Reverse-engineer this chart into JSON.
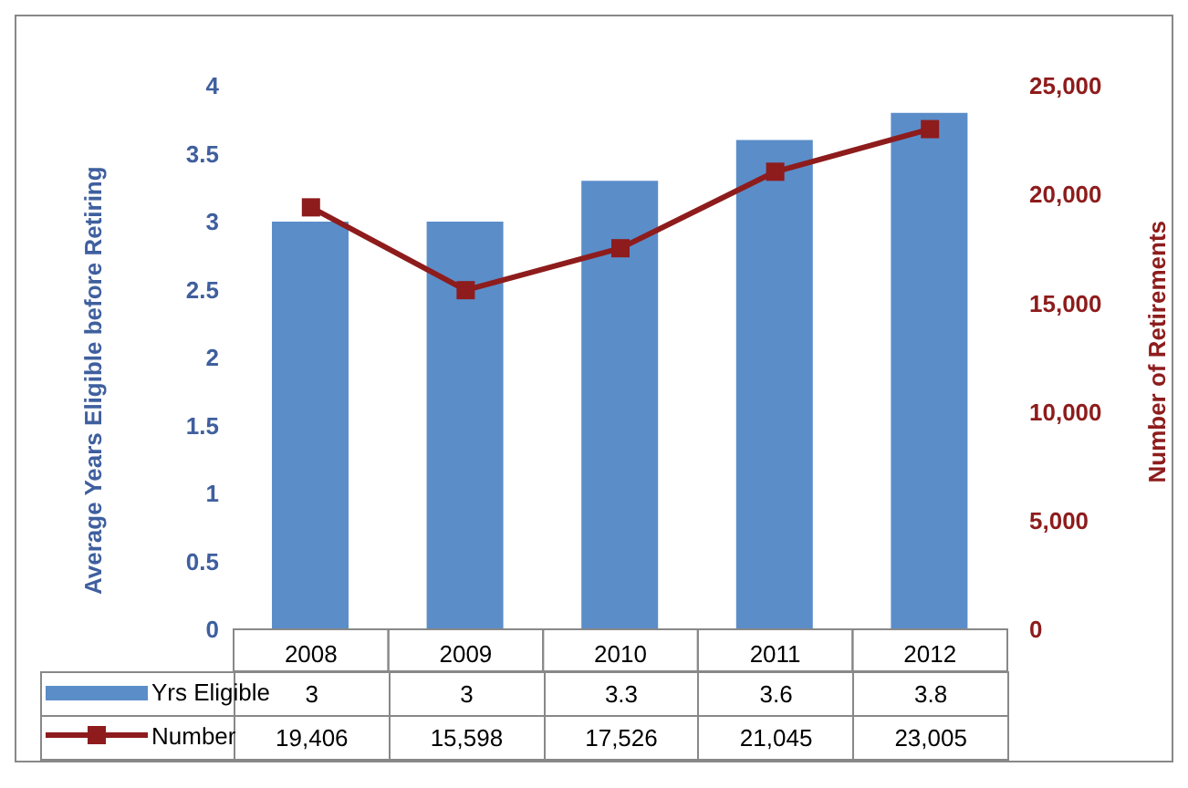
{
  "chart_data": {
    "type": "bar",
    "categories": [
      "2008",
      "2009",
      "2010",
      "2011",
      "2012"
    ],
    "series": [
      {
        "name": "Yrs Eligible",
        "color": "#5b8dc9",
        "values": [
          3,
          3,
          3.3,
          3.6,
          3.8
        ],
        "value_labels": [
          "3",
          "3",
          "3.3",
          "3.6",
          "3.8"
        ]
      },
      {
        "name": "Number",
        "type": "line",
        "axis": "y2",
        "color": "#8e1c1c",
        "values": [
          19406,
          15598,
          17526,
          21045,
          23005
        ],
        "value_labels": [
          "19,406",
          "15,598",
          "17,526",
          "21,045",
          "23,005"
        ]
      }
    ],
    "ylabel": "Average Years Eligible before Retiring",
    "y2label": "Number of Retirements",
    "ylim": [
      0,
      4
    ],
    "yticks": [
      0,
      0.5,
      1,
      1.5,
      2,
      2.5,
      3,
      3.5,
      4
    ],
    "y2lim": [
      0,
      25000
    ],
    "y2ticks": [
      0,
      {
        "value": 5000,
        "label": "5,000"
      },
      {
        "value": 10000,
        "label": "10,000"
      },
      {
        "value": 15000,
        "label": "15,000"
      },
      {
        "value": 20000,
        "label": "20,000"
      },
      {
        "value": 25000,
        "label": "25,000"
      }
    ],
    "marker": "square",
    "legend": "bottom",
    "grid": false
  }
}
